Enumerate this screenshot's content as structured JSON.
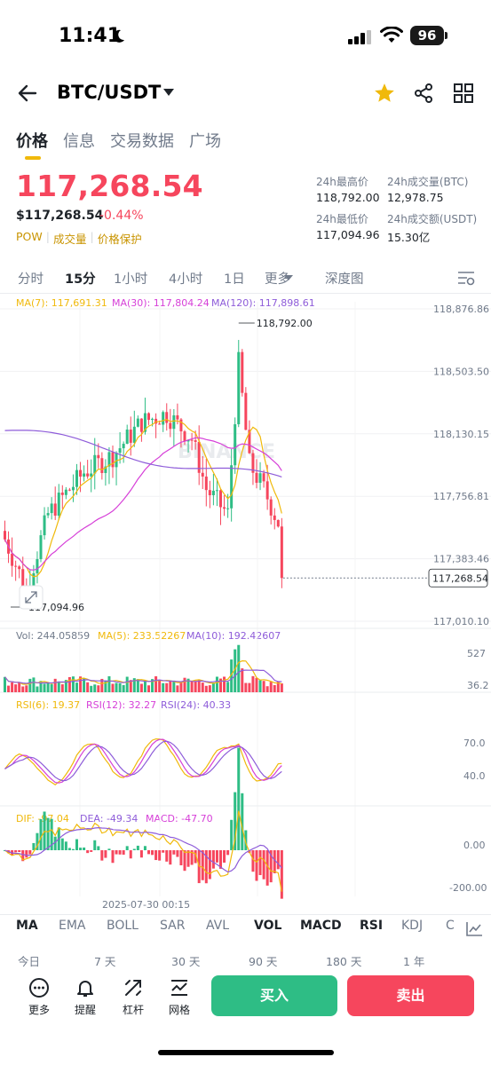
{
  "status_bar": {
    "time": "11:41",
    "battery": "96"
  },
  "header": {
    "pair": "BTC/USDT"
  },
  "tabs": [
    {
      "label": "价格",
      "active": true
    },
    {
      "label": "信息",
      "active": false
    },
    {
      "label": "交易数据",
      "active": false
    },
    {
      "label": "广场",
      "active": false
    }
  ],
  "ticker": {
    "last_price": "117,268.54",
    "usd_price": "$117,268.54",
    "change": "-0.44%",
    "tags": [
      "POW",
      "成交量",
      "价格保护"
    ],
    "high_label": "24h最高价",
    "high": "118,792.00",
    "vol_btc_label": "24h成交量(BTC)",
    "vol_btc": "12,978.75",
    "low_label": "24h最低价",
    "low": "117,094.96",
    "vol_usdt_label": "24h成交额(USDT)",
    "vol_usdt": "15.30亿"
  },
  "intervals": [
    "分时",
    "15分",
    "1小时",
    "4小时",
    "1日",
    "更多",
    "深度图"
  ],
  "active_interval": "15分",
  "main_legend": {
    "ma7": "MA(7): 117,691.31",
    "ma30": "MA(30): 117,804.24",
    "ma120": "MA(120): 117,898.61"
  },
  "vol_legend": {
    "vol": "Vol: 244.05859",
    "ma5": "MA(5): 233.52267",
    "ma10": "MA(10): 192.42607"
  },
  "rsi_legend": {
    "r6": "RSI(6): 19.37",
    "r12": "RSI(12): 32.27",
    "r24": "RSI(24): 40.33"
  },
  "macd_legend": {
    "dif": "DIF: -97.04",
    "dea": "DEA: -49.34",
    "macd": "MACD: -47.70"
  },
  "watermark": "BINANCE",
  "chart_data": {
    "type": "candlestick",
    "price_axis": [
      "118,876.86",
      "118,503.50",
      "118,130.15",
      "117,756.81",
      "117,383.46",
      "117,010.10"
    ],
    "price_range": [
      117010.1,
      118876.86
    ],
    "high_marker": "118,792.00",
    "low_marker": "117,094.96",
    "last_price_tag": "117,268.54",
    "vol_axis": [
      "527",
      "36.2"
    ],
    "rsi_axis": [
      "70.0",
      "40.0"
    ],
    "macd_axis": [
      "0.00",
      "-200.00"
    ],
    "time_label": "2025-07-30 00:15",
    "colors": {
      "up": "#2ebd85",
      "down": "#f6465d",
      "ma7": "#f0b90b",
      "ma30": "#d63fd8",
      "ma120": "#8e5cd9"
    }
  },
  "indicators": [
    "MA",
    "EMA",
    "BOLL",
    "SAR",
    "AVL",
    "VOL",
    "MACD",
    "RSI",
    "KDJ",
    "C"
  ],
  "periods": [
    "今日",
    "7 天",
    "30 天",
    "90 天",
    "180 天",
    "1 年"
  ],
  "bottom_nav": [
    "更多",
    "提醒",
    "杠杆",
    "网格"
  ],
  "actions": {
    "buy": "买入",
    "sell": "卖出"
  }
}
